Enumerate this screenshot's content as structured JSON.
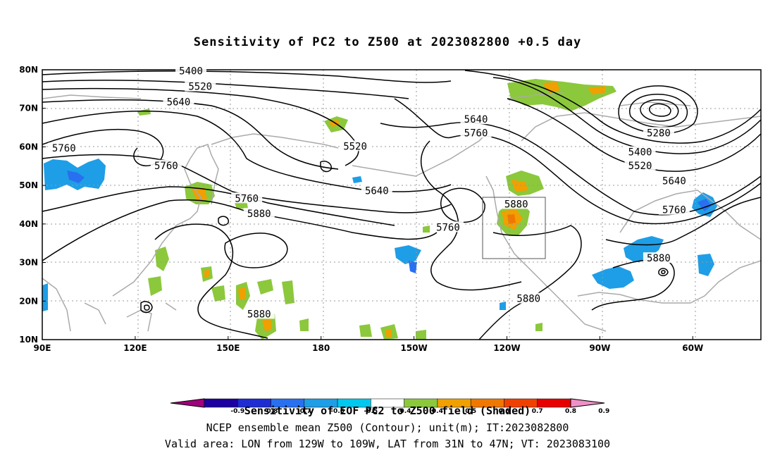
{
  "title": "Sensitivity of PC2 to Z500 at 2023082800 +0.5 day",
  "map": {
    "lat_labels": [
      "80N",
      "70N",
      "60N",
      "50N",
      "40N",
      "30N",
      "20N",
      "10N"
    ],
    "lon_labels": [
      "90E",
      "120E",
      "150E",
      "180",
      "150W",
      "120W",
      "90W",
      "60W"
    ],
    "contour_labels": [
      {
        "text": "5400",
        "lon": 138,
        "lat": 79.5
      },
      {
        "text": "5520",
        "lon": 141,
        "lat": 75.5
      },
      {
        "text": "5640",
        "lon": 134,
        "lat": 71.5
      },
      {
        "text": "5760",
        "lon": 97,
        "lat": 59.5
      },
      {
        "text": "5760",
        "lon": 130,
        "lat": 55
      },
      {
        "text": "5520",
        "lon": 191,
        "lat": 60
      },
      {
        "text": "5640",
        "lon": 198,
        "lat": 48.5
      },
      {
        "text": "5760",
        "lon": 156,
        "lat": 46.5
      },
      {
        "text": "5880",
        "lon": 160,
        "lat": 42.5
      },
      {
        "text": "5640",
        "lon": 230,
        "lat": 67
      },
      {
        "text": "5760",
        "lon": 230,
        "lat": 63.5
      },
      {
        "text": "5760",
        "lon": 221,
        "lat": 39
      },
      {
        "text": "5880",
        "lon": 243,
        "lat": 45
      },
      {
        "text": "5280",
        "lon": 289,
        "lat": 63.5
      },
      {
        "text": "5400",
        "lon": 283,
        "lat": 58.5
      },
      {
        "text": "5520",
        "lon": 283,
        "lat": 55
      },
      {
        "text": "5640",
        "lon": 294,
        "lat": 51
      },
      {
        "text": "5760",
        "lon": 294,
        "lat": 43.5
      },
      {
        "text": "5880",
        "lon": 289,
        "lat": 31
      },
      {
        "text": "5880",
        "lon": 160,
        "lat": 16.5
      },
      {
        "text": "5880",
        "lon": 247,
        "lat": 20.5
      }
    ],
    "box_label": "Valid area box"
  },
  "colorbar": {
    "labels": [
      "-0.9",
      "-0.8",
      "-0.7",
      "-0.6",
      "-0.5",
      "-0.4",
      "0.4",
      "0.5",
      "0.6",
      "0.7",
      "0.8",
      "0.9"
    ],
    "colors": [
      "#a0007d",
      "#1e00a0",
      "#1e2cd2",
      "#2870f0",
      "#1e9ee6",
      "#00c8ee",
      "#ffffff",
      "#8cc83c",
      "#f0a000",
      "#f07800",
      "#f04000",
      "#e60000",
      "#f090c8"
    ]
  },
  "legend_caption": "Sensitivity of EOF PC2 to Z500 field (Shaded)",
  "footer_line1": "NCEP ensemble mean Z500 (Contour); unit(m); IT:2023082800",
  "footer_line2": "Valid area: LON from 129W to 109W, LAT from 31N to 47N; VT: 2023083100"
}
